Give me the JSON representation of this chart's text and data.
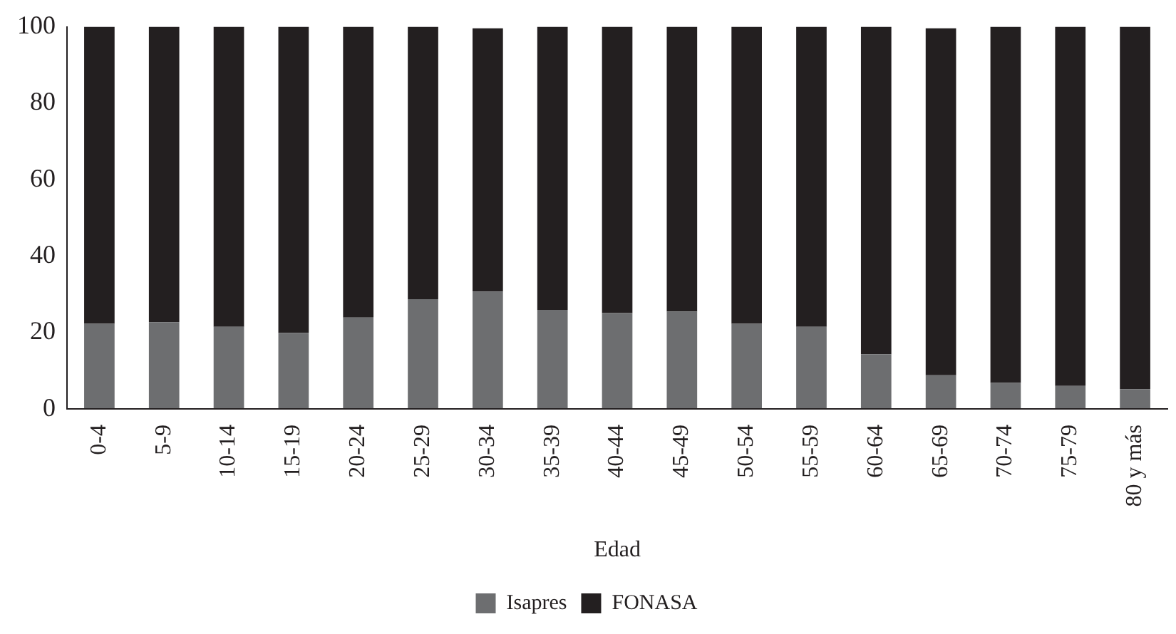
{
  "chart_data": {
    "type": "bar",
    "xlabel": "Edad",
    "stacked": true,
    "legend": "bottom",
    "grid": false,
    "categories": [
      "0-4",
      "5-9",
      "10-14",
      "15-19",
      "20-24",
      "25-29",
      "30-34",
      "35-39",
      "40-44",
      "45-49",
      "50-54",
      "55-59",
      "60-64",
      "65-69",
      "70-74",
      "75-79",
      "80 y más"
    ],
    "series": [
      {
        "name": "Isapres",
        "color": "#6d6e70",
        "values": [
          22.3,
          22.7,
          21.5,
          19.9,
          23.9,
          28.7,
          30.7,
          25.9,
          25.1,
          25.5,
          22.3,
          21.5,
          14.3,
          8.8,
          6.8,
          6.0,
          5.2
        ]
      },
      {
        "name": "FONASA",
        "color": "#231f20",
        "values": [
          77.7,
          77.3,
          78.5,
          80.1,
          76.1,
          71.3,
          68.9,
          74.1,
          74.9,
          74.5,
          77.7,
          78.5,
          85.7,
          90.8,
          93.2,
          94.0,
          94.8
        ]
      }
    ],
    "ylim": [
      0,
      100
    ],
    "yticks": [
      0,
      20,
      40,
      60,
      80,
      100
    ]
  }
}
